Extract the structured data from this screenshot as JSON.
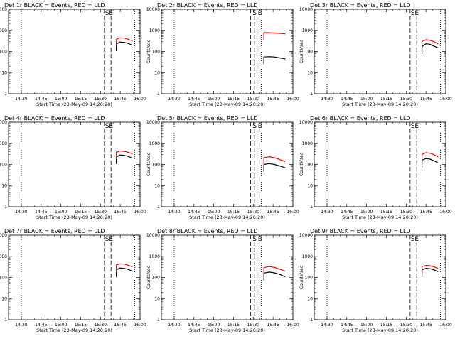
{
  "chart_data": [
    {
      "type": "line",
      "title": "Det 1r BLACK = Events, RED = LLD",
      "xlabel": "Start Time (23-May-09 14:20:20)",
      "ylabel": "Counts/sec",
      "x_ticks": [
        "14:30",
        "14:45",
        "15:00",
        "15:15",
        "15:30",
        "15:45",
        "16:00"
      ],
      "y_ticks": [
        "1",
        "10",
        "100",
        "1000",
        "10000"
      ],
      "ylim": [
        1,
        10000
      ],
      "ylog": true,
      "xlim": [
        "14:20:20",
        "16:00:00"
      ],
      "dotted_lines": [
        "14:30",
        "15:56"
      ],
      "dashed_lines": [
        "15:33",
        "15:38"
      ],
      "markers": [
        {
          "label": "S",
          "x": "15:35"
        },
        {
          "label": "E",
          "x": "15:38"
        }
      ],
      "series": [
        {
          "name": "Events",
          "color": "#000000",
          "x": [
            "15:42",
            "15:45",
            "15:48",
            "15:51",
            "15:54"
          ],
          "y": [
            230,
            280,
            270,
            240,
            200
          ]
        },
        {
          "name": "LLD",
          "color": "#ff0000",
          "x": [
            "15:42",
            "15:45",
            "15:48",
            "15:51",
            "15:54"
          ],
          "y": [
            380,
            440,
            430,
            380,
            320
          ]
        }
      ]
    },
    {
      "type": "line",
      "title": "Det 2r BLACK = Events, RED = LLD",
      "xlabel": "Start Time (23-May-09 14:20:20)",
      "ylabel": "Counts/sec",
      "x_ticks": [
        "14:30",
        "14:45",
        "15:00",
        "15:15",
        "15:30",
        "15:45",
        "16:00"
      ],
      "y_ticks": [
        "1",
        "10",
        "100",
        "1000",
        "10000"
      ],
      "ylim": [
        1,
        10000
      ],
      "ylog": true,
      "xlim": [
        "14:20:20",
        "16:00:00"
      ],
      "dotted_lines": [
        "14:30",
        "15:36"
      ],
      "dashed_lines": [
        "15:28",
        "15:31"
      ],
      "markers": [
        {
          "label": "S",
          "x": "15:31"
        },
        {
          "label": "E",
          "x": "15:35"
        }
      ],
      "series": [
        {
          "name": "Events",
          "color": "#000000",
          "x": [
            "15:38",
            "15:42",
            "15:46",
            "15:50",
            "15:54"
          ],
          "y": [
            55,
            57,
            55,
            50,
            45
          ]
        },
        {
          "name": "LLD",
          "color": "#ff0000",
          "x": [
            "15:38",
            "15:42",
            "15:46",
            "15:50",
            "15:54"
          ],
          "y": [
            780,
            770,
            750,
            720,
            680
          ]
        }
      ]
    },
    {
      "type": "line",
      "title": "Det 3r BLACK = Events, RED = LLD",
      "xlabel": "Start Time (23-May-09 14:20:20)",
      "ylabel": "Counts/sec",
      "x_ticks": [
        "14:30",
        "14:45",
        "15:00",
        "15:15",
        "15:30",
        "15:45",
        "16:00"
      ],
      "y_ticks": [
        "1",
        "10",
        "100",
        "1000",
        "10000"
      ],
      "ylim": [
        1,
        10000
      ],
      "ylog": true,
      "xlim": [
        "14:20:20",
        "16:00:00"
      ],
      "dotted_lines": [
        "14:30",
        "15:56"
      ],
      "dashed_lines": [
        "15:33",
        "15:38"
      ],
      "markers": [
        {
          "label": "S",
          "x": "15:35"
        },
        {
          "label": "E",
          "x": "15:38"
        }
      ],
      "series": [
        {
          "name": "Events",
          "color": "#000000",
          "x": [
            "15:42",
            "15:45",
            "15:48",
            "15:51",
            "15:54"
          ],
          "y": [
            170,
            230,
            220,
            180,
            150
          ]
        },
        {
          "name": "LLD",
          "color": "#ff0000",
          "x": [
            "15:42",
            "15:45",
            "15:48",
            "15:51",
            "15:54"
          ],
          "y": [
            300,
            360,
            340,
            290,
            230
          ]
        }
      ]
    },
    {
      "type": "line",
      "title": "Det 4r BLACK = Events, RED = LLD",
      "xlabel": "Start Time (23-May-09 14:20:20)",
      "ylabel": "Counts/sec",
      "x_ticks": [
        "14:30",
        "14:45",
        "15:00",
        "15:15",
        "15:30",
        "15:45",
        "16:00"
      ],
      "y_ticks": [
        "1",
        "10",
        "100",
        "1000",
        "10000"
      ],
      "ylim": [
        1,
        10000
      ],
      "ylog": true,
      "xlim": [
        "14:20:20",
        "16:00:00"
      ],
      "dotted_lines": [
        "14:30",
        "15:56"
      ],
      "dashed_lines": [
        "15:33",
        "15:38"
      ],
      "markers": [
        {
          "label": "S",
          "x": "15:35"
        },
        {
          "label": "E",
          "x": "15:38"
        }
      ],
      "series": [
        {
          "name": "Events",
          "color": "#000000",
          "x": [
            "15:42",
            "15:45",
            "15:48",
            "15:51",
            "15:54"
          ],
          "y": [
            230,
            280,
            270,
            240,
            200
          ]
        },
        {
          "name": "LLD",
          "color": "#ff0000",
          "x": [
            "15:42",
            "15:45",
            "15:48",
            "15:51",
            "15:54"
          ],
          "y": [
            380,
            430,
            420,
            380,
            320
          ]
        }
      ]
    },
    {
      "type": "line",
      "title": "Det 5r BLACK = Events, RED = LLD",
      "xlabel": "Start Time (23-May-09 14:20:20)",
      "ylabel": "Counts/sec",
      "x_ticks": [
        "14:30",
        "14:45",
        "15:00",
        "15:15",
        "15:30",
        "15:45",
        "16:00"
      ],
      "y_ticks": [
        "1",
        "10",
        "100",
        "1000",
        "10000"
      ],
      "ylim": [
        1,
        10000
      ],
      "ylog": true,
      "xlim": [
        "14:20:20",
        "16:00:00"
      ],
      "dotted_lines": [
        "14:30",
        "15:36"
      ],
      "dashed_lines": [
        "15:28",
        "15:31"
      ],
      "markers": [
        {
          "label": "S",
          "x": "15:31"
        },
        {
          "label": "E",
          "x": "15:35"
        }
      ],
      "series": [
        {
          "name": "Events",
          "color": "#000000",
          "x": [
            "15:38",
            "15:42",
            "15:46",
            "15:50",
            "15:54"
          ],
          "y": [
            100,
            110,
            100,
            85,
            70
          ]
        },
        {
          "name": "LLD",
          "color": "#ff0000",
          "x": [
            "15:38",
            "15:42",
            "15:46",
            "15:50",
            "15:54"
          ],
          "y": [
            210,
            230,
            210,
            170,
            140
          ]
        }
      ]
    },
    {
      "type": "line",
      "title": "Det 6r BLACK = Events, RED = LLD",
      "xlabel": "Start Time (23-May-09 14:20:20)",
      "ylabel": "Counts/sec",
      "x_ticks": [
        "14:30",
        "14:45",
        "15:00",
        "15:15",
        "15:30",
        "15:45",
        "16:00"
      ],
      "y_ticks": [
        "1",
        "10",
        "100",
        "1000",
        "10000"
      ],
      "ylim": [
        1,
        10000
      ],
      "ylog": true,
      "xlim": [
        "14:20:20",
        "16:00:00"
      ],
      "dotted_lines": [
        "14:30",
        "15:56"
      ],
      "dashed_lines": [
        "15:33",
        "15:38"
      ],
      "markers": [
        {
          "label": "S",
          "x": "15:35"
        },
        {
          "label": "E",
          "x": "15:38"
        }
      ],
      "series": [
        {
          "name": "Events",
          "color": "#000000",
          "x": [
            "15:42",
            "15:45",
            "15:48",
            "15:51",
            "15:54"
          ],
          "y": [
            160,
            190,
            180,
            150,
            120
          ]
        },
        {
          "name": "LLD",
          "color": "#ff0000",
          "x": [
            "15:42",
            "15:45",
            "15:48",
            "15:51",
            "15:54"
          ],
          "y": [
            300,
            360,
            340,
            290,
            230
          ]
        }
      ]
    },
    {
      "type": "line",
      "title": "Det 7r BLACK = Events, RED = LLD",
      "xlabel": "Start Time (23-May-09 14:20:20)",
      "ylabel": "Counts/sec",
      "x_ticks": [
        "14:30",
        "14:45",
        "15:00",
        "15:15",
        "15:30",
        "15:45",
        "16:00"
      ],
      "y_ticks": [
        "1",
        "10",
        "100",
        "1000",
        "10000"
      ],
      "ylim": [
        1,
        10000
      ],
      "ylog": true,
      "xlim": [
        "14:20:20",
        "16:00:00"
      ],
      "dotted_lines": [
        "14:30",
        "15:56"
      ],
      "dashed_lines": [
        "15:33",
        "15:38"
      ],
      "markers": [
        {
          "label": "S",
          "x": "15:35"
        },
        {
          "label": "E",
          "x": "15:38"
        }
      ],
      "series": [
        {
          "name": "Events",
          "color": "#000000",
          "x": [
            "15:42",
            "15:45",
            "15:48",
            "15:51",
            "15:54"
          ],
          "y": [
            230,
            280,
            270,
            240,
            200
          ]
        },
        {
          "name": "LLD",
          "color": "#ff0000",
          "x": [
            "15:42",
            "15:45",
            "15:48",
            "15:51",
            "15:54"
          ],
          "y": [
            390,
            440,
            430,
            380,
            320
          ]
        }
      ]
    },
    {
      "type": "line",
      "title": "Det 8r BLACK = Events, RED = LLD",
      "xlabel": "Start Time (23-May-09 14:20:20)",
      "ylabel": "Counts/sec",
      "x_ticks": [
        "14:30",
        "14:45",
        "15:00",
        "15:15",
        "15:30",
        "15:45",
        "16:00"
      ],
      "y_ticks": [
        "1",
        "10",
        "100",
        "1000",
        "10000"
      ],
      "ylim": [
        1,
        10000
      ],
      "ylog": true,
      "xlim": [
        "14:20:20",
        "16:00:00"
      ],
      "dotted_lines": [
        "14:30",
        "15:36"
      ],
      "dashed_lines": [
        "15:28",
        "15:31"
      ],
      "markers": [
        {
          "label": "S",
          "x": "15:31"
        },
        {
          "label": "E",
          "x": "15:35"
        }
      ],
      "series": [
        {
          "name": "Events",
          "color": "#000000",
          "x": [
            "15:38",
            "15:42",
            "15:46",
            "15:50",
            "15:54"
          ],
          "y": [
            160,
            180,
            165,
            140,
            110
          ]
        },
        {
          "name": "LLD",
          "color": "#ff0000",
          "x": [
            "15:38",
            "15:42",
            "15:46",
            "15:50",
            "15:54"
          ],
          "y": [
            290,
            330,
            300,
            250,
            200
          ]
        }
      ]
    },
    {
      "type": "line",
      "title": "Det 9r BLACK = Events, RED = LLD",
      "xlabel": "Start Time (23-May-09 14:20:20)",
      "ylabel": "Counts/sec",
      "x_ticks": [
        "14:30",
        "14:45",
        "15:00",
        "15:15",
        "15:30",
        "15:45",
        "16:00"
      ],
      "y_ticks": [
        "1",
        "10",
        "100",
        "1000",
        "10000"
      ],
      "ylim": [
        1,
        10000
      ],
      "ylog": true,
      "xlim": [
        "14:20:20",
        "16:00:00"
      ],
      "dotted_lines": [
        "14:30",
        "15:56"
      ],
      "dashed_lines": [
        "15:33",
        "15:38"
      ],
      "markers": [
        {
          "label": "S",
          "x": "15:35"
        },
        {
          "label": "E",
          "x": "15:38"
        }
      ],
      "series": [
        {
          "name": "Events",
          "color": "#000000",
          "x": [
            "15:42",
            "15:45",
            "15:48",
            "15:51",
            "15:54"
          ],
          "y": [
            230,
            270,
            260,
            230,
            190
          ]
        },
        {
          "name": "LLD",
          "color": "#ff0000",
          "x": [
            "15:42",
            "15:45",
            "15:48",
            "15:51",
            "15:54"
          ],
          "y": [
            330,
            370,
            360,
            320,
            270
          ]
        }
      ]
    }
  ]
}
